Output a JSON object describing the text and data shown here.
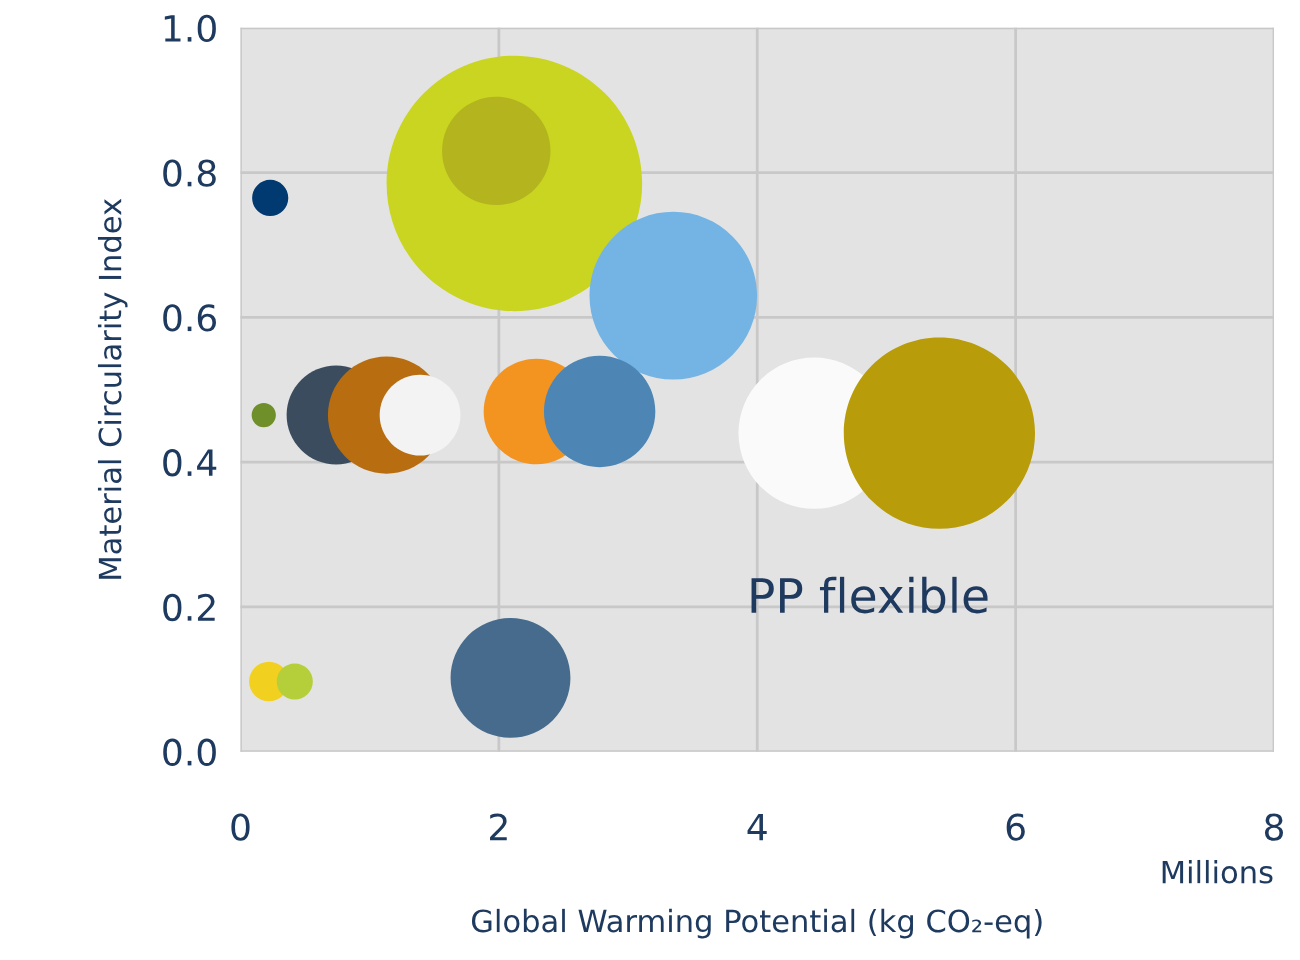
{
  "chart_data": {
    "type": "bubble",
    "xlabel": "Global Warming Potential (kg CO₂-eq)",
    "ylabel": "Material Circularity Index",
    "xlim": [
      0,
      8
    ],
    "xticks": [
      0,
      2,
      4,
      6,
      8
    ],
    "ylim": [
      0,
      1
    ],
    "yticks": [
      {
        "value": 0,
        "label": "0.0"
      },
      0.2,
      0.4,
      0.6,
      0.8,
      {
        "value": 1,
        "label": "1.0"
      }
    ],
    "grid": true,
    "legend": false,
    "annotations": [
      "PP flexible",
      "Millions"
    ],
    "series": [
      {
        "color": "#003a70",
        "x": [
          0.23
        ],
        "values": [
          0.765
        ],
        "sizes": [
          0.02
        ]
      },
      {
        "color": "#c9d520",
        "x": [
          2.12
        ],
        "values": [
          0.785
        ],
        "sizes": [
          1
        ]
      },
      {
        "color": "#b4b41e",
        "x": [
          1.98
        ],
        "values": [
          0.83
        ],
        "sizes": [
          0.18
        ]
      },
      {
        "color": "#74b4e4",
        "x": [
          3.35
        ],
        "values": [
          0.63
        ],
        "sizes": [
          0.43
        ]
      },
      {
        "color": "#6f8f2a",
        "x": [
          0.18
        ],
        "values": [
          0.465
        ],
        "sizes": [
          0.009
        ]
      },
      {
        "color": "#3b4c5e",
        "x": [
          0.74
        ],
        "values": [
          0.465
        ],
        "sizes": [
          0.15
        ]
      },
      {
        "color": "#b86e10",
        "x": [
          1.13
        ],
        "values": [
          0.465
        ],
        "sizes": [
          0.21
        ]
      },
      {
        "color": "#f3f3f3",
        "x": [
          1.39
        ],
        "values": [
          0.465
        ],
        "sizes": [
          0.1
        ]
      },
      {
        "color": "#f39320",
        "x": [
          2.29
        ],
        "values": [
          0.47
        ],
        "sizes": [
          0.17
        ]
      },
      {
        "color": "#4d86b4",
        "x": [
          2.78
        ],
        "values": [
          0.47
        ],
        "sizes": [
          0.19
        ]
      },
      {
        "color": "#fafafa",
        "x": [
          4.44
        ],
        "values": [
          0.44
        ],
        "sizes": [
          0.35
        ]
      },
      {
        "color": "#b89c0a",
        "x": [
          5.41
        ],
        "values": [
          0.44
        ],
        "sizes": [
          0.56
        ]
      },
      {
        "color": "#f2d020",
        "x": [
          0.22
        ],
        "values": [
          0.097
        ],
        "sizes": [
          0.024
        ]
      },
      {
        "color": "#b4cf3a",
        "x": [
          0.42
        ],
        "values": [
          0.097
        ],
        "sizes": [
          0.02
        ]
      },
      {
        "color": "#476b8c",
        "x": [
          2.09
        ],
        "values": [
          0.102
        ],
        "sizes": [
          0.22
        ]
      }
    ]
  }
}
